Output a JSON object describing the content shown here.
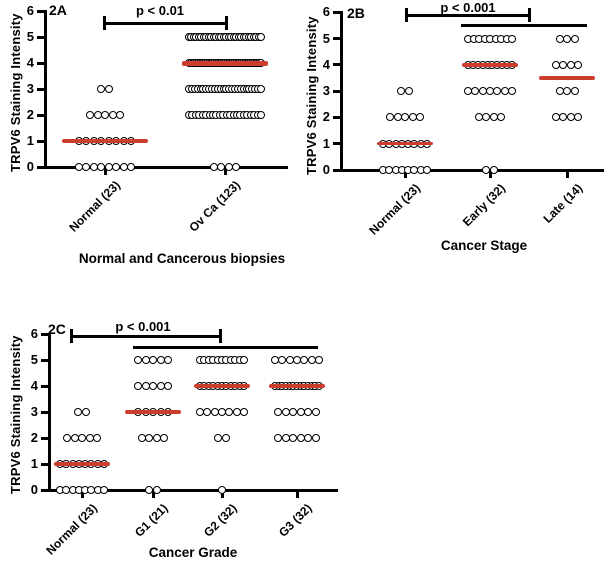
{
  "figure": {
    "background_color": "#ffffff",
    "axis_color": "#000000",
    "dot_fill_color": "#ffffff",
    "dot_stroke_color": "#000000",
    "median_color": "#cc3d2e"
  },
  "chart_data": [
    {
      "type": "scatter",
      "panel_tag": "2A",
      "ylabel": "TRPV6 Staining Intensity",
      "xlabel": "Normal and Cancerous biopsies",
      "ylim": [
        0,
        6
      ],
      "yticks": [
        0,
        1,
        2,
        3,
        4,
        5,
        6
      ],
      "grid": false,
      "categories": [
        "Normal (23)",
        "Ov Ca (123)"
      ],
      "groups": [
        {
          "label": "Normal (23)",
          "n": 23,
          "points": {
            "0": 8,
            "1": 8,
            "2": 5,
            "3": 2
          },
          "median": 1
        },
        {
          "label": "Ov Ca (123)",
          "n": 123,
          "points": {
            "0": 4,
            "2": 22,
            "3": 26,
            "4": 41,
            "5": 30
          },
          "median": 4
        }
      ],
      "significance": [
        {
          "label": "p < 0.01",
          "groups": [
            "Normal (23)",
            "Ov Ca (123)"
          ]
        }
      ]
    },
    {
      "type": "scatter",
      "panel_tag": "2B",
      "ylabel": "TRPV6 Staining Intensity",
      "xlabel": "Cancer Stage",
      "ylim": [
        0,
        6
      ],
      "yticks": [
        0,
        1,
        2,
        3,
        4,
        5,
        6
      ],
      "grid": false,
      "categories": [
        "Normal (23)",
        "Early (32)",
        "Late (14)"
      ],
      "groups": [
        {
          "label": "Normal (23)",
          "n": 23,
          "points": {
            "0": 8,
            "1": 8,
            "2": 5,
            "3": 2
          },
          "median": 1
        },
        {
          "label": "Early (32)",
          "n": 32,
          "points": {
            "0": 2,
            "2": 4,
            "3": 7,
            "4": 10,
            "5": 9
          },
          "median": 4
        },
        {
          "label": "Late (14)",
          "n": 14,
          "points": {
            "2": 4,
            "3": 3,
            "4": 4,
            "5": 3
          },
          "median": 3.5
        }
      ],
      "significance": [
        {
          "label": "p < 0.001",
          "groups": [
            "Normal (23)",
            "Early (32)"
          ]
        },
        {
          "label": "",
          "groups": [
            "Early (32)",
            "Late (14)"
          ]
        }
      ]
    },
    {
      "type": "scatter",
      "panel_tag": "2C",
      "ylabel": "TRPV6 Staining Intensity",
      "xlabel": "Cancer Grade",
      "ylim": [
        0,
        6
      ],
      "yticks": [
        0,
        1,
        2,
        3,
        4,
        5,
        6
      ],
      "grid": false,
      "categories": [
        "Normal (23)",
        "G1 (21)",
        "G2 (32)",
        "G3 (32)"
      ],
      "groups": [
        {
          "label": "Normal (23)",
          "n": 23,
          "points": {
            "0": 8,
            "1": 8,
            "2": 5,
            "3": 2
          },
          "median": 1
        },
        {
          "label": "G1 (21)",
          "n": 21,
          "points": {
            "0": 2,
            "2": 4,
            "3": 5,
            "4": 5,
            "5": 5
          },
          "median": 3
        },
        {
          "label": "G2 (32)",
          "n": 32,
          "points": {
            "0": 1,
            "2": 2,
            "3": 7,
            "4": 11,
            "5": 11
          },
          "median": 4
        },
        {
          "label": "G3 (32)",
          "n": 32,
          "points": {
            "2": 6,
            "3": 6,
            "4": 13,
            "5": 7
          },
          "median": 4
        }
      ],
      "significance": [
        {
          "label": "p < 0.001",
          "groups": [
            "Normal (23)",
            "G2 (32)"
          ]
        },
        {
          "label": "",
          "groups": [
            "G1 (21)",
            "G3 (32)"
          ]
        }
      ]
    }
  ]
}
